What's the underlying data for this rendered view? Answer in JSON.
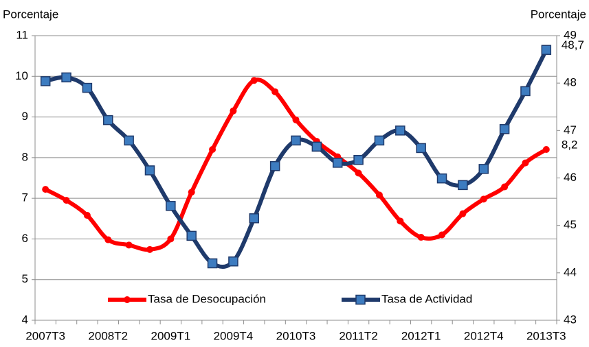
{
  "chart_data": {
    "type": "line",
    "categories": [
      "2007T3",
      null,
      null,
      "2008T2",
      null,
      null,
      "2009T1",
      null,
      null,
      "2009T4",
      null,
      null,
      "2010T3",
      null,
      null,
      "2011T2",
      null,
      null,
      "2012T1",
      null,
      null,
      "2012T4",
      null,
      null,
      "2013T3"
    ],
    "ylabel": "Porcentaje",
    "y2label": "Porcentaje",
    "ylim": [
      4,
      11
    ],
    "yticks": [
      4,
      5,
      6,
      7,
      8,
      9,
      10,
      11
    ],
    "y2lim": [
      43,
      49
    ],
    "y2ticks": [
      43,
      44,
      45,
      46,
      47,
      48,
      49
    ],
    "grid": true,
    "legend": "bottom",
    "series": [
      {
        "name": "Tasa de Desocupación",
        "color": "#ff0000",
        "marker": "circle",
        "values": [
          7.22,
          6.95,
          6.58,
          5.98,
          5.85,
          5.74,
          6.0,
          7.15,
          8.2,
          9.15,
          9.9,
          9.62,
          8.93,
          8.4,
          8.02,
          7.62,
          7.08,
          6.44,
          6.04,
          6.1,
          6.62,
          6.98,
          7.28,
          7.87,
          8.2
        ],
        "value_labels": [
          null,
          null,
          null,
          null,
          null,
          null,
          null,
          null,
          null,
          null,
          null,
          null,
          null,
          null,
          null,
          null,
          null,
          null,
          null,
          null,
          null,
          null,
          null,
          null,
          "8,2"
        ]
      },
      {
        "name": "Tasa de Actividad",
        "color": "#1f3a6b",
        "marker": "square",
        "marker_color": "#3d7cc0",
        "axis": "y2",
        "values": [
          48.04,
          48.12,
          47.9,
          47.22,
          46.79,
          46.16,
          45.41,
          44.78,
          44.2,
          44.24,
          45.15,
          46.25,
          46.79,
          46.66,
          46.32,
          46.38,
          46.79,
          47.0,
          46.63,
          45.99,
          45.85,
          46.19,
          47.03,
          47.83,
          48.7
        ],
        "value_labels": [
          null,
          null,
          null,
          null,
          null,
          null,
          null,
          null,
          null,
          null,
          null,
          null,
          null,
          null,
          null,
          null,
          null,
          null,
          null,
          null,
          null,
          null,
          null,
          null,
          "48,7"
        ]
      }
    ]
  }
}
